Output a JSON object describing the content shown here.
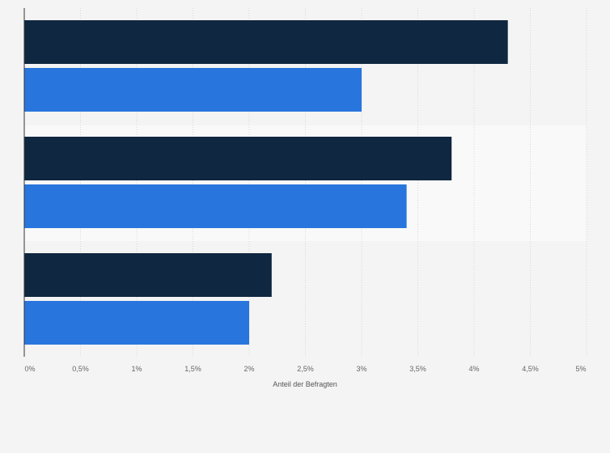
{
  "chart_data": {
    "type": "bar",
    "orientation": "horizontal",
    "categories": [
      "",
      "",
      ""
    ],
    "series": [
      {
        "color": "#0f2740",
        "values": [
          4.3,
          3.8,
          2.2
        ]
      },
      {
        "color": "#2876dd",
        "values": [
          3.0,
          3.4,
          2.0
        ]
      }
    ],
    "xlabel": "Anteil der Befragten",
    "ylabel": "",
    "xlim": [
      0,
      5
    ],
    "x_ticks": [
      0,
      0.5,
      1,
      1.5,
      2,
      2.5,
      3,
      3.5,
      4,
      4.5,
      5
    ],
    "x_tick_labels": [
      "0%",
      "0,5%",
      "1%",
      "1,5%",
      "2%",
      "2,5%",
      "3%",
      "3,5%",
      "4%",
      "4,5%",
      "5%"
    ],
    "grid": true,
    "legend": "none"
  }
}
